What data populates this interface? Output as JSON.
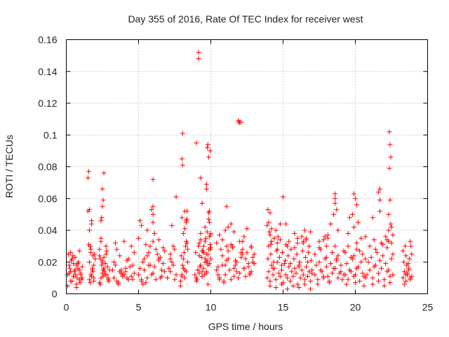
{
  "chart_data": {
    "type": "scatter",
    "title": "Day 355 of 2016, Rate Of TEC Index for receiver west",
    "xlabel": "GPS time / hours",
    "ylabel": "ROTI / TECUs",
    "xlim": [
      0,
      25
    ],
    "ylim": [
      0,
      0.16
    ],
    "xticks": [
      "0",
      "5",
      "10",
      "15",
      "20",
      "25"
    ],
    "yticks": [
      "0",
      "0.02",
      "0.04",
      "0.06",
      "0.08",
      "0.1",
      "0.12",
      "0.14",
      "0.16"
    ],
    "grid": true,
    "marker": "plus",
    "color": "#ff0000",
    "series": [
      {
        "name": "ROTI",
        "x": [
          0.1,
          0.2,
          0.3,
          0.4,
          0.5,
          0.6,
          0.7,
          0.8,
          0.9,
          1.0,
          1.1,
          0.15,
          0.35,
          0.55,
          0.75,
          0.95,
          0.25,
          0.45,
          0.65,
          0.85,
          1.05,
          0.1,
          0.3,
          0.5,
          0.7,
          0.9,
          1.1,
          0.2,
          0.4,
          0.6,
          0.8,
          1.0,
          0.3,
          0.5,
          0.7,
          0.9,
          1.6,
          1.7,
          1.8,
          1.9,
          2.0,
          1.65,
          1.75,
          1.85,
          1.95,
          1.6,
          1.7,
          1.8,
          1.9,
          1.65,
          1.85,
          1.5,
          1.55,
          1.5,
          1.6,
          1.6,
          1.75,
          1.75,
          1.55,
          1.7,
          1.9,
          2.3,
          2.4,
          2.5,
          2.6,
          2.7,
          2.8,
          2.9,
          3.0,
          2.35,
          2.45,
          2.55,
          2.65,
          2.75,
          2.85,
          2.95,
          2.3,
          2.5,
          2.7,
          2.9,
          2.4,
          2.6,
          2.8,
          2.35,
          2.55,
          2.75,
          2.4,
          2.45,
          2.5,
          2.55,
          2.6,
          2.5,
          2.3,
          2.4,
          2.5,
          3.3,
          3.5,
          3.7,
          3.9,
          4.1,
          4.3,
          4.5,
          4.7,
          3.4,
          3.6,
          3.8,
          4.0,
          4.2,
          4.4,
          4.6,
          3.3,
          3.7,
          4.1,
          4.5,
          3.5,
          3.9,
          4.3,
          4.7,
          3.4,
          4.0,
          4.6,
          3.6,
          4.2,
          3.2,
          3.8,
          5.0,
          5.2,
          5.4,
          5.6,
          5.8,
          6.0,
          6.2,
          6.4,
          6.6,
          6.8,
          5.1,
          5.3,
          5.5,
          5.7,
          5.9,
          6.1,
          6.3,
          6.5,
          6.7,
          5.0,
          5.4,
          5.8,
          6.2,
          6.6,
          5.2,
          5.6,
          6.0,
          6.4,
          6.8,
          5.3,
          5.7,
          6.1,
          6.5,
          5.5,
          6.0,
          6.0,
          5.9,
          6.0,
          6.0,
          5.1,
          5.2,
          5.6,
          6.1,
          6.4,
          6.7,
          7.0,
          7.2,
          7.4,
          7.6,
          7.1,
          7.3,
          7.5,
          7.2,
          7.4,
          7.3,
          7.6,
          7.2,
          7.5,
          7.9,
          8.0,
          8.1,
          8.2,
          8.3,
          8.4,
          7.95,
          8.05,
          8.15,
          8.25,
          8.35,
          7.9,
          8.1,
          8.3,
          8.0,
          8.2,
          8.4,
          8.1,
          8.3,
          8.2,
          8.0,
          8.05,
          8.05,
          8.0,
          8.35,
          8.35,
          8.3,
          8.2,
          8.9,
          9.0,
          9.1,
          9.2,
          9.3,
          9.4,
          9.5,
          9.6,
          9.7,
          9.8,
          9.9,
          10.0,
          8.95,
          9.05,
          9.15,
          9.25,
          9.35,
          9.45,
          9.55,
          9.65,
          9.75,
          9.85,
          9.95,
          9.0,
          9.2,
          9.4,
          9.6,
          9.8,
          10.0,
          9.1,
          9.3,
          9.5,
          9.7,
          9.9,
          9.2,
          9.6,
          10.0,
          9.4,
          9.8,
          9.3,
          9.7,
          9.15,
          9.15,
          9.0,
          9.3,
          9.4,
          9.7,
          9.7,
          9.8,
          9.75,
          9.85,
          9.95,
          9.9,
          9.85,
          9.9,
          9.6,
          9.75,
          10.0,
          9.5,
          9.7,
          9.95,
          9.85,
          10.4,
          10.6,
          10.8,
          11.0,
          11.2,
          11.4,
          11.6,
          11.8,
          12.0,
          12.2,
          12.4,
          12.6,
          12.8,
          13.0,
          10.5,
          10.7,
          10.9,
          11.1,
          11.3,
          11.5,
          11.7,
          11.9,
          12.1,
          12.3,
          12.5,
          12.7,
          12.9,
          10.4,
          10.8,
          11.2,
          11.6,
          12.0,
          12.4,
          12.8,
          10.6,
          11.0,
          11.4,
          11.8,
          12.2,
          12.6,
          13.0,
          10.5,
          11.1,
          11.7,
          12.3,
          12.9,
          10.9,
          11.5,
          12.1,
          12.7,
          10.6,
          10.8,
          11.1,
          11.4,
          11.0,
          11.9,
          11.95,
          12.0,
          12.1,
          12.5,
          12.2,
          12.8,
          11.6,
          12.3,
          11.2,
          13.9,
          14.0,
          14.1,
          14.2,
          14.3,
          14.4,
          14.5,
          14.6,
          14.7,
          14.8,
          14.9,
          15.0,
          15.1,
          15.2,
          15.3,
          15.4,
          15.5,
          15.6,
          15.7,
          15.8,
          15.9,
          16.0,
          16.1,
          16.2,
          16.3,
          16.4,
          16.5,
          16.6,
          16.7,
          16.8,
          16.9,
          17.0,
          13.95,
          14.15,
          14.35,
          14.55,
          14.75,
          14.95,
          15.15,
          15.35,
          15.55,
          15.75,
          15.95,
          16.15,
          16.35,
          16.55,
          16.75,
          16.95,
          14.0,
          14.3,
          14.6,
          14.9,
          15.2,
          15.5,
          15.8,
          16.1,
          16.4,
          16.7,
          17.0,
          14.1,
          14.5,
          14.9,
          15.3,
          15.7,
          16.1,
          16.5,
          16.9,
          14.2,
          14.8,
          15.4,
          16.0,
          16.6,
          13.9,
          14.0,
          14.05,
          14.1,
          13.95,
          14.1,
          14.2,
          14.2,
          14.15,
          14.8,
          14.5,
          14.4,
          14.6,
          14.65,
          15.3,
          15.0,
          15.2,
          15.8,
          16.3,
          16.0,
          16.5,
          16.6,
          16.9,
          16.8,
          16.4,
          17.2,
          17.4,
          17.6,
          17.8,
          18.0,
          18.2,
          18.4,
          18.6,
          18.8,
          19.0,
          19.2,
          17.3,
          17.5,
          17.7,
          17.9,
          18.1,
          18.3,
          18.5,
          18.7,
          18.9,
          19.1,
          17.2,
          17.6,
          18.0,
          18.4,
          18.8,
          19.2,
          17.4,
          17.8,
          18.2,
          18.6,
          19.0,
          17.5,
          18.1,
          18.7,
          18.6,
          18.6,
          18.6,
          18.7,
          18.5,
          18.3,
          18.1,
          17.9,
          17.8,
          18.0,
          18.8,
          17.5,
          19.3,
          19.5,
          19.7,
          19.9,
          20.1,
          20.3,
          20.5,
          20.7,
          19.4,
          19.6,
          19.8,
          20.0,
          20.2,
          20.4,
          20.6,
          19.3,
          19.7,
          20.1,
          20.5,
          19.5,
          19.9,
          20.3,
          20.7,
          19.4,
          20.0,
          20.6,
          19.9,
          20.0,
          20.1,
          19.8,
          19.6,
          20.2,
          19.5,
          20.7,
          19.9,
          20.4,
          20.1,
          20.8,
          21.0,
          21.2,
          21.4,
          21.6,
          21.8,
          22.0,
          22.2,
          22.4,
          22.6,
          20.9,
          21.1,
          21.3,
          21.5,
          21.7,
          21.9,
          22.1,
          22.3,
          22.5,
          21.0,
          21.4,
          21.8,
          22.2,
          22.6,
          21.2,
          21.6,
          22.0,
          22.4,
          21.3,
          21.9,
          21.7,
          21.6,
          21.7,
          21.7,
          21.2,
          22.3,
          22.35,
          22.4,
          22.45,
          22.35,
          22.4,
          22.45,
          22.5,
          22.3,
          22.6,
          22.1,
          22.2,
          22.3,
          22.5,
          23.3,
          23.4,
          23.5,
          23.6,
          23.7,
          23.8,
          23.9,
          23.35,
          23.55,
          23.75,
          23.4,
          23.6,
          23.8,
          23.5,
          23.7,
          23.3,
          23.45,
          23.65,
          23.5,
          23.8,
          23.85,
          23.9
        ],
        "y": [
          0.012,
          0.018,
          0.008,
          0.022,
          0.011,
          0.015,
          0.006,
          0.019,
          0.009,
          0.013,
          0.017,
          0.025,
          0.021,
          0.014,
          0.01,
          0.007,
          0.016,
          0.024,
          0.012,
          0.02,
          0.009,
          0.005,
          0.014,
          0.011,
          0.018,
          0.027,
          0.01,
          0.013,
          0.008,
          0.023,
          0.016,
          0.012,
          0.026,
          0.019,
          0.004,
          0.015,
          0.009,
          0.012,
          0.015,
          0.018,
          0.022,
          0.007,
          0.011,
          0.014,
          0.025,
          0.02,
          0.028,
          0.016,
          0.01,
          0.03,
          0.024,
          0.052,
          0.077,
          0.073,
          0.053,
          0.04,
          0.044,
          0.046,
          0.031,
          0.026,
          0.008,
          0.007,
          0.01,
          0.013,
          0.016,
          0.019,
          0.012,
          0.009,
          0.015,
          0.022,
          0.018,
          0.011,
          0.014,
          0.025,
          0.017,
          0.008,
          0.028,
          0.02,
          0.012,
          0.01,
          0.033,
          0.023,
          0.027,
          0.006,
          0.015,
          0.03,
          0.046,
          0.048,
          0.055,
          0.059,
          0.076,
          0.066,
          0.024,
          0.035,
          0.021,
          0.01,
          0.008,
          0.014,
          0.012,
          0.016,
          0.009,
          0.011,
          0.013,
          0.018,
          0.007,
          0.015,
          0.012,
          0.01,
          0.017,
          0.009,
          0.02,
          0.024,
          0.014,
          0.03,
          0.028,
          0.011,
          0.022,
          0.026,
          0.032,
          0.033,
          0.018,
          0.006,
          0.021,
          0.015,
          0.013,
          0.012,
          0.008,
          0.015,
          0.01,
          0.018,
          0.013,
          0.009,
          0.022,
          0.011,
          0.014,
          0.016,
          0.02,
          0.007,
          0.026,
          0.012,
          0.017,
          0.025,
          0.01,
          0.019,
          0.035,
          0.022,
          0.03,
          0.028,
          0.015,
          0.009,
          0.024,
          0.033,
          0.021,
          0.027,
          0.006,
          0.018,
          0.038,
          0.023,
          0.031,
          0.055,
          0.072,
          0.053,
          0.05,
          0.045,
          0.046,
          0.043,
          0.04,
          0.038,
          0.034,
          0.029,
          0.01,
          0.014,
          0.018,
          0.012,
          0.016,
          0.02,
          0.009,
          0.025,
          0.03,
          0.043,
          0.061,
          0.022,
          0.028,
          0.008,
          0.012,
          0.016,
          0.01,
          0.014,
          0.02,
          0.024,
          0.018,
          0.026,
          0.03,
          0.032,
          0.005,
          0.022,
          0.033,
          0.011,
          0.015,
          0.028,
          0.038,
          0.046,
          0.052,
          0.085,
          0.101,
          0.081,
          0.048,
          0.052,
          0.047,
          0.045,
          0.041,
          0.012,
          0.01,
          0.015,
          0.013,
          0.018,
          0.011,
          0.016,
          0.02,
          0.014,
          0.025,
          0.019,
          0.022,
          0.026,
          0.009,
          0.03,
          0.017,
          0.023,
          0.027,
          0.012,
          0.035,
          0.021,
          0.028,
          0.031,
          0.008,
          0.024,
          0.014,
          0.033,
          0.018,
          0.029,
          0.015,
          0.038,
          0.026,
          0.02,
          0.036,
          0.032,
          0.022,
          0.037,
          0.027,
          0.006,
          0.034,
          0.013,
          0.152,
          0.148,
          0.095,
          0.073,
          0.057,
          0.069,
          0.066,
          0.094,
          0.092,
          0.086,
          0.09,
          0.052,
          0.051,
          0.045,
          0.042,
          0.039,
          0.038,
          0.03,
          0.025,
          0.028,
          0.047,
          0.015,
          0.01,
          0.018,
          0.012,
          0.022,
          0.009,
          0.016,
          0.02,
          0.013,
          0.025,
          0.011,
          0.017,
          0.014,
          0.019,
          0.012,
          0.028,
          0.008,
          0.021,
          0.015,
          0.03,
          0.018,
          0.01,
          0.023,
          0.016,
          0.026,
          0.012,
          0.02,
          0.032,
          0.024,
          0.027,
          0.011,
          0.033,
          0.022,
          0.029,
          0.009,
          0.018,
          0.031,
          0.014,
          0.028,
          0.019,
          0.025,
          0.017,
          0.03,
          0.021,
          0.016,
          0.023,
          0.007,
          0.029,
          0.026,
          0.013,
          0.037,
          0.034,
          0.055,
          0.044,
          0.04,
          0.109,
          0.108,
          0.108,
          0.108,
          0.041,
          0.033,
          0.03,
          0.039,
          0.036,
          0.042,
          0.01,
          0.014,
          0.008,
          0.018,
          0.012,
          0.016,
          0.009,
          0.02,
          0.013,
          0.011,
          0.015,
          0.007,
          0.019,
          0.012,
          0.01,
          0.017,
          0.008,
          0.014,
          0.011,
          0.016,
          0.013,
          0.006,
          0.018,
          0.01,
          0.015,
          0.012,
          0.009,
          0.017,
          0.011,
          0.014,
          0.008,
          0.013,
          0.022,
          0.025,
          0.02,
          0.027,
          0.023,
          0.026,
          0.021,
          0.024,
          0.028,
          0.022,
          0.025,
          0.02,
          0.027,
          0.023,
          0.026,
          0.021,
          0.03,
          0.016,
          0.028,
          0.018,
          0.031,
          0.019,
          0.029,
          0.017,
          0.032,
          0.02,
          0.015,
          0.005,
          0.004,
          0.006,
          0.003,
          0.005,
          0.004,
          0.006,
          0.003,
          0.033,
          0.034,
          0.033,
          0.035,
          0.034,
          0.043,
          0.045,
          0.039,
          0.051,
          0.053,
          0.037,
          0.041,
          0.033,
          0.031,
          0.044,
          0.04,
          0.035,
          0.032,
          0.036,
          0.03,
          0.061,
          0.044,
          0.038,
          0.036,
          0.032,
          0.04,
          0.035,
          0.039,
          0.03,
          0.033,
          0.012,
          0.009,
          0.015,
          0.011,
          0.017,
          0.008,
          0.013,
          0.016,
          0.01,
          0.014,
          0.012,
          0.018,
          0.02,
          0.014,
          0.022,
          0.011,
          0.019,
          0.016,
          0.021,
          0.013,
          0.009,
          0.025,
          0.028,
          0.023,
          0.026,
          0.024,
          0.027,
          0.006,
          0.01,
          0.007,
          0.03,
          0.018,
          0.033,
          0.035,
          0.022,
          0.063,
          0.06,
          0.057,
          0.053,
          0.05,
          0.044,
          0.037,
          0.036,
          0.034,
          0.03,
          0.04,
          0.029,
          0.012,
          0.009,
          0.014,
          0.011,
          0.016,
          0.008,
          0.013,
          0.01,
          0.019,
          0.015,
          0.022,
          0.012,
          0.017,
          0.02,
          0.011,
          0.026,
          0.023,
          0.028,
          0.025,
          0.03,
          0.024,
          0.027,
          0.022,
          0.006,
          0.007,
          0.005,
          0.063,
          0.06,
          0.056,
          0.05,
          0.048,
          0.045,
          0.038,
          0.036,
          0.042,
          0.035,
          0.032,
          0.012,
          0.015,
          0.01,
          0.018,
          0.013,
          0.016,
          0.009,
          0.014,
          0.011,
          0.012,
          0.02,
          0.023,
          0.017,
          0.026,
          0.021,
          0.024,
          0.019,
          0.015,
          0.022,
          0.03,
          0.028,
          0.032,
          0.029,
          0.025,
          0.006,
          0.008,
          0.005,
          0.007,
          0.034,
          0.031,
          0.066,
          0.064,
          0.059,
          0.052,
          0.048,
          0.05,
          0.102,
          0.094,
          0.086,
          0.079,
          0.059,
          0.044,
          0.042,
          0.04,
          0.037,
          0.036,
          0.034,
          0.033,
          0.032,
          0.01,
          0.014,
          0.008,
          0.012,
          0.016,
          0.009,
          0.011,
          0.02,
          0.018,
          0.022,
          0.006,
          0.013,
          0.01,
          0.024,
          0.015,
          0.027,
          0.03,
          0.019,
          0.012,
          0.033,
          0.03,
          0.025
        ]
      }
    ]
  }
}
